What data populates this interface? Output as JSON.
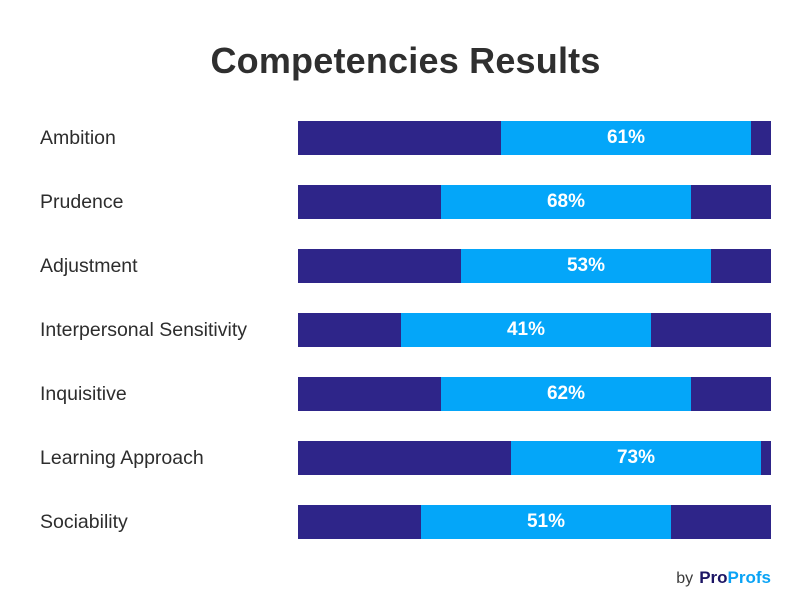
{
  "chart_data": {
    "type": "bar",
    "subtype": "floating-range-bar",
    "title": "Competencies Results",
    "categories": [
      "Ambition",
      "Prudence",
      "Adjustment",
      "Interpersonal Sensitivity",
      "Inquisitive",
      "Learning Approach",
      "Sociability"
    ],
    "values": [
      61,
      68,
      53,
      41,
      62,
      73,
      51
    ],
    "value_labels": [
      "61%",
      "68%",
      "53%",
      "41%",
      "62%",
      "73%",
      "51%"
    ],
    "highlight_start_fraction": [
      0.429,
      0.302,
      0.345,
      0.218,
      0.302,
      0.45,
      0.26
    ],
    "highlight_width_fraction": 0.529,
    "colors": {
      "track": "#2e2589",
      "highlight": "#04a6f9",
      "value_text": "#ffffff"
    },
    "xlabel": "",
    "ylabel": "",
    "grid": false,
    "legend": "none"
  },
  "footer": {
    "by": "by",
    "brand_part1": "Pro",
    "brand_part2": "Profs"
  }
}
